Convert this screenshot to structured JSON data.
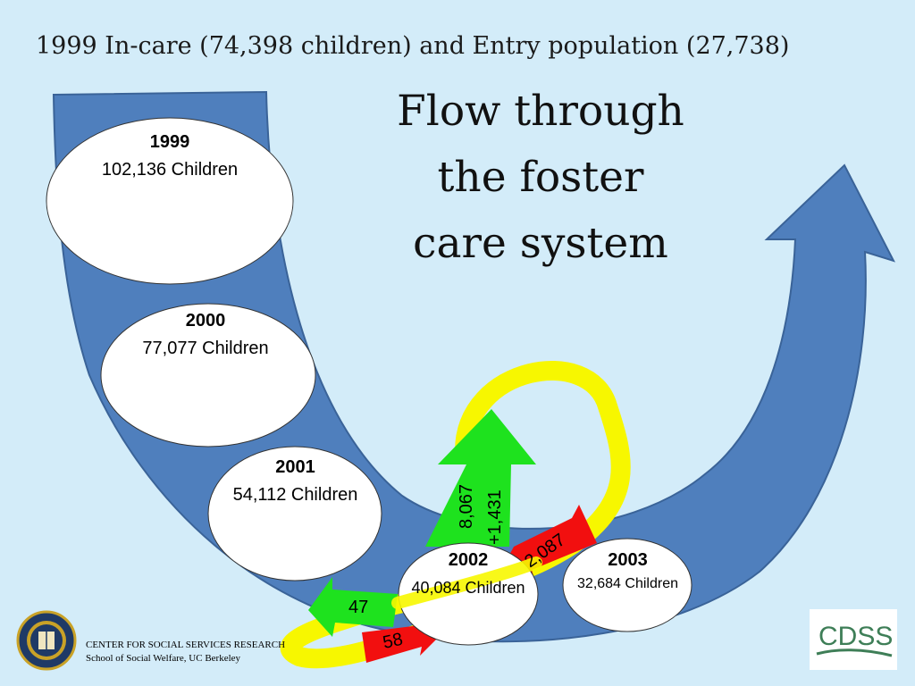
{
  "slide": {
    "subtitle": "1999 In-care (74,398 children) and Entry population (27,738)",
    "title_lines": [
      "Flow through",
      "the foster",
      "care system"
    ]
  },
  "years": [
    {
      "year": "1999",
      "children": "102,136 Children"
    },
    {
      "year": "2000",
      "children": "77,077 Children"
    },
    {
      "year": "2001",
      "children": "54,112 Children"
    },
    {
      "year": "2002",
      "children": "40,084 Children"
    },
    {
      "year": "2003",
      "children": "32,684 Children"
    }
  ],
  "flows": {
    "up_green_a": "8,067",
    "up_green_b": "+1,431",
    "red_down": "2,087",
    "green_small": "47",
    "red_small": "58"
  },
  "footer": {
    "line1": "CENTER FOR SOCIAL SERVICES RESEARCH",
    "line2": "School of Social Welfare, UC Berkeley"
  },
  "logo": {
    "text": "CDSS",
    "text_color": "#3e7e57"
  },
  "colors": {
    "background": "#d3ecf9",
    "flow_blue": "#4f7fbd",
    "green": "#1ee21e",
    "red": "#f20f0f",
    "yellow": "#f7f700"
  }
}
